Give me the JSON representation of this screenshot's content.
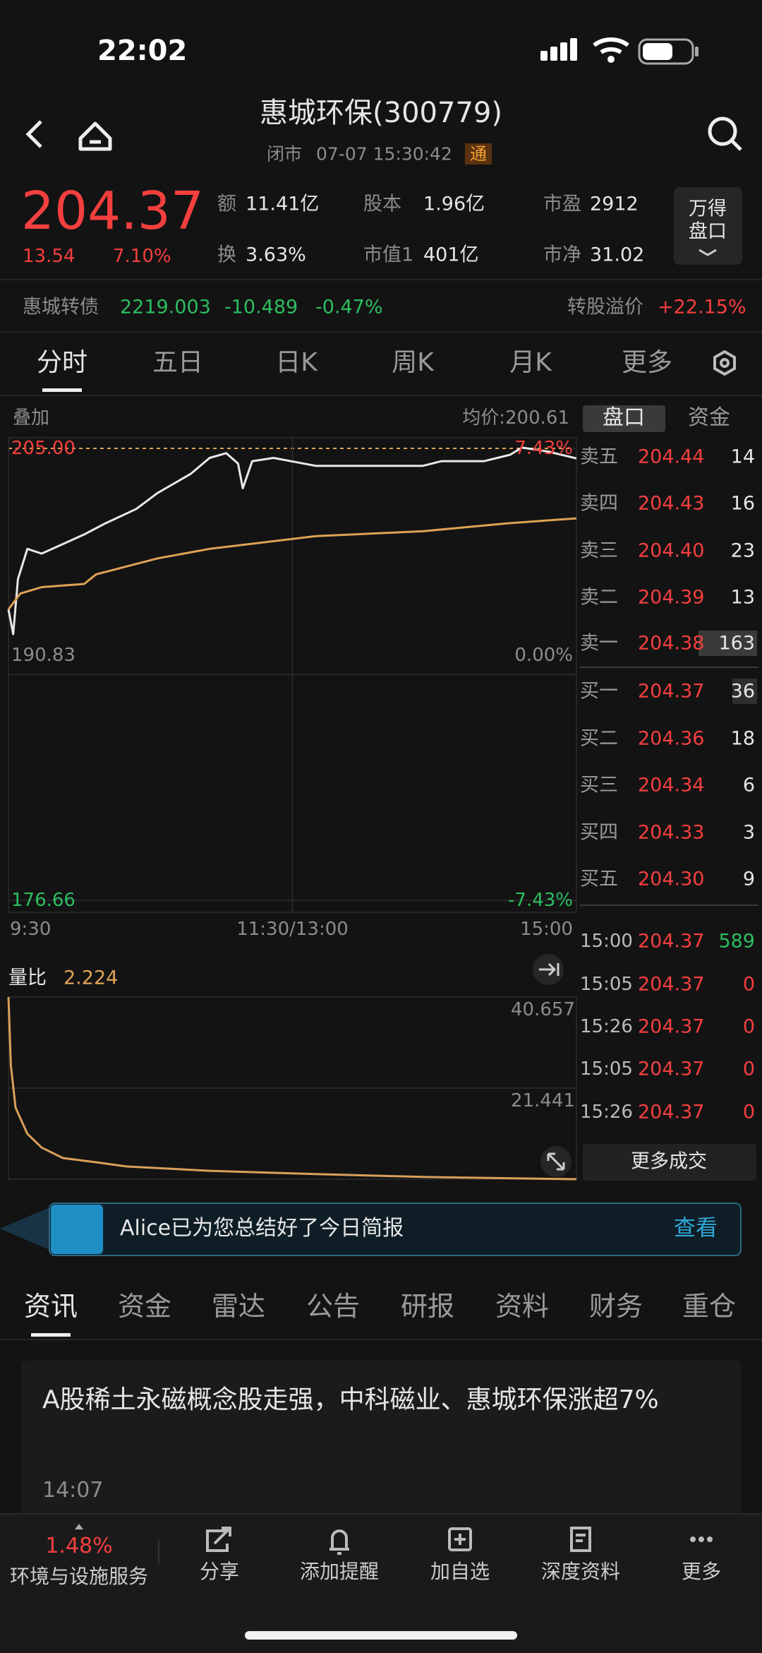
{
  "status_bar": {
    "time": "22:02"
  },
  "header": {
    "title": "惠城环保(300779)",
    "status": "闭市",
    "datetime": "07-07 15:30:42",
    "badge": "通"
  },
  "quote": {
    "price": "204.37",
    "change": "13.54",
    "change_pct": "7.10%",
    "stats": [
      {
        "label": "额",
        "value": "11.41亿"
      },
      {
        "label": "股本",
        "value": "1.96亿"
      },
      {
        "label": "市盈",
        "value": "2912"
      },
      {
        "label": "换",
        "value": "3.63%"
      },
      {
        "label": "市值1",
        "value": "401亿"
      },
      {
        "label": "市净",
        "value": "31.02"
      }
    ],
    "button": [
      "万得",
      "盘口"
    ]
  },
  "bond": {
    "name": "惠城转债",
    "price": "2219.003",
    "change": "-10.489",
    "change_pct": "-0.47%",
    "premium_label": "转股溢价",
    "premium": "+22.15%"
  },
  "chart_tabs": [
    "分时",
    "五日",
    "日K",
    "周K",
    "月K",
    "更多"
  ],
  "overlay_label": "叠加",
  "avg_price": {
    "label": "均价:",
    "value": "200.61"
  },
  "panel_tabs": [
    "盘口",
    "资金"
  ],
  "chart_data": [
    {
      "type": "line",
      "xlim": [
        0,
        240
      ],
      "xticks": [
        {
          "value": 0,
          "label": "9:30"
        },
        {
          "value": 120,
          "label": "11:30/13:00"
        },
        {
          "value": 240,
          "label": "15:00"
        }
      ],
      "ylim": [
        176.66,
        205
      ],
      "yticks": [
        {
          "value": 205,
          "label": "205.00"
        },
        190.83,
        176.66
      ],
      "y2lim": [
        -7.43,
        7.43
      ],
      "y2ticks": [
        {
          "value": 7.43,
          "label": "7.43%"
        },
        {
          "value": 0,
          "label": "0.00%"
        },
        {
          "value": -7.43,
          "label": "-7.43%"
        }
      ],
      "grid": true,
      "series": [
        {
          "color": "#e8e8e8",
          "x": [
            0,
            2,
            4,
            8,
            14,
            23,
            32,
            41,
            54,
            63,
            77,
            85,
            92,
            97,
            99,
            103,
            112,
            130,
            152,
            175,
            183,
            201,
            212,
            217,
            228,
            240
          ],
          "values": [
            194.9,
            193.35,
            196.8,
            198.7,
            198.4,
            199.0,
            199.6,
            200.3,
            201.2,
            202.2,
            203.4,
            204.4,
            204.7,
            204.05,
            202.5,
            204.2,
            204.4,
            203.9,
            203.9,
            203.9,
            204.2,
            204.2,
            204.6,
            205.05,
            204.8,
            204.37
          ]
        },
        {
          "color": "#e0a254",
          "x": [
            0,
            5,
            14,
            32,
            37,
            63,
            85,
            130,
            175,
            211,
            240
          ],
          "values": [
            194.9,
            195.9,
            196.3,
            196.5,
            197.1,
            198.1,
            198.7,
            199.5,
            199.8,
            200.3,
            200.61
          ]
        }
      ]
    },
    {
      "type": "line",
      "xlim": [
        0,
        240
      ],
      "ylim": [
        2.225,
        40.657
      ],
      "yticks": [
        21.441,
        40.657
      ],
      "grid": true,
      "series": [
        {
          "color": "#d9a05b",
          "x": [
            0,
            1,
            3,
            8,
            14,
            23,
            37,
            50,
            85,
            130,
            175,
            240
          ],
          "values": [
            40.657,
            26.2,
            17.3,
            11.8,
            8.9,
            6.7,
            5.8,
            4.9,
            4.0,
            3.3,
            2.7,
            2.224
          ]
        }
      ]
    }
  ],
  "order_book": {
    "asks": [
      {
        "label": "卖五",
        "price": "204.44",
        "volume": "14"
      },
      {
        "label": "卖四",
        "price": "204.43",
        "volume": "16"
      },
      {
        "label": "卖三",
        "price": "204.40",
        "volume": "23"
      },
      {
        "label": "卖二",
        "price": "204.39",
        "volume": "13"
      },
      {
        "label": "卖一",
        "price": "204.38",
        "volume": "163"
      }
    ],
    "bids": [
      {
        "label": "买一",
        "price": "204.37",
        "volume": "36"
      },
      {
        "label": "买二",
        "price": "204.36",
        "volume": "18"
      },
      {
        "label": "买三",
        "price": "204.34",
        "volume": "6"
      },
      {
        "label": "买四",
        "price": "204.33",
        "volume": "3"
      },
      {
        "label": "买五",
        "price": "204.30",
        "volume": "9"
      }
    ]
  },
  "trades": [
    {
      "time": "15:00",
      "price": "204.37",
      "volume": "589"
    },
    {
      "time": "15:05",
      "price": "204.37",
      "volume": "0"
    },
    {
      "time": "15:26",
      "price": "204.37",
      "volume": "0"
    },
    {
      "time": "15:05",
      "price": "204.37",
      "volume": "0"
    },
    {
      "time": "15:26",
      "price": "204.37",
      "volume": "0"
    }
  ],
  "more_trades": "更多成交",
  "volume_ratio": {
    "label": "量比",
    "value": "2.224"
  },
  "banner": {
    "text": "Alice已为您总结好了今日简报",
    "action": "查看"
  },
  "news_tabs": [
    "资讯",
    "资金",
    "雷达",
    "公告",
    "研报",
    "资料",
    "财务",
    "重仓"
  ],
  "news": [
    {
      "title": "A股稀土永磁概念股走强，中科磁业、惠城环保涨超7%",
      "time": "14:07"
    }
  ],
  "bottom_bar": {
    "sector_change": "1.48%",
    "sector": "环境与设施服务",
    "actions": [
      "分享",
      "添加提醒",
      "加自选",
      "深度资料",
      "更多"
    ]
  }
}
